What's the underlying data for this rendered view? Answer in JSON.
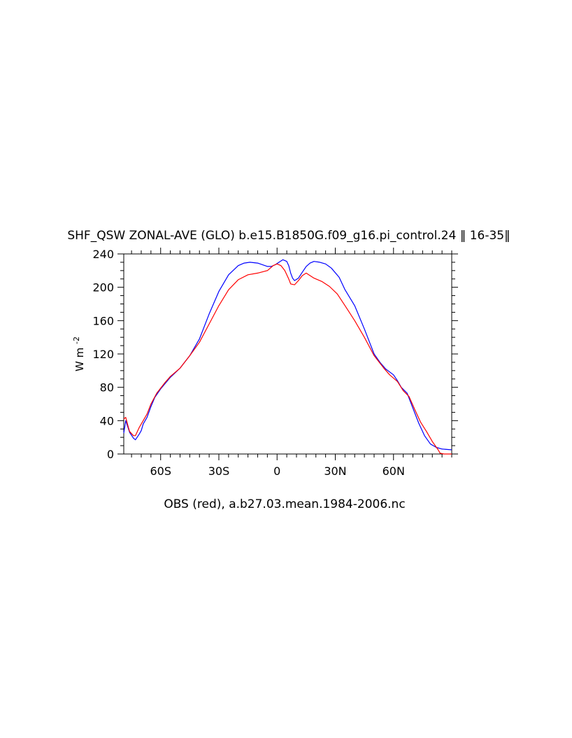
{
  "chart_data": {
    "type": "line",
    "title": "SHF_QSW ZONAL-AVE (GLO) b.e15.B1850G.f09_g16.pi_control.24 ‖ 16-35‖",
    "xlabel": "OBS (red), a.b27.03.mean.1984-2006.nc",
    "ylabel": "W m",
    "ylabel_exponent": "-2",
    "xlim": [
      -79,
      90
    ],
    "ylim": [
      0,
      240
    ],
    "x_ticks": [
      {
        "value": -60,
        "label": "60S"
      },
      {
        "value": -30,
        "label": "30S"
      },
      {
        "value": 0,
        "label": "0"
      },
      {
        "value": 30,
        "label": "30N"
      },
      {
        "value": 60,
        "label": "60N"
      }
    ],
    "y_ticks": [
      {
        "value": 0,
        "label": "0"
      },
      {
        "value": 40,
        "label": "40"
      },
      {
        "value": 80,
        "label": "80"
      },
      {
        "value": 120,
        "label": "120"
      },
      {
        "value": 160,
        "label": "160"
      },
      {
        "value": 200,
        "label": "200"
      },
      {
        "value": 240,
        "label": "240"
      }
    ],
    "grid": false,
    "series": [
      {
        "color": "#0000ff",
        "points": [
          [
            -79,
            25
          ],
          [
            -78,
            40
          ],
          [
            -77,
            33
          ],
          [
            -76,
            26
          ],
          [
            -74,
            19
          ],
          [
            -73,
            17
          ],
          [
            -71,
            24
          ],
          [
            -70,
            28
          ],
          [
            -69,
            36
          ],
          [
            -67,
            44
          ],
          [
            -65,
            57
          ],
          [
            -63,
            68
          ],
          [
            -60,
            78
          ],
          [
            -55,
            92
          ],
          [
            -50,
            103
          ],
          [
            -45,
            118
          ],
          [
            -40,
            138
          ],
          [
            -35,
            168
          ],
          [
            -30,
            195
          ],
          [
            -25,
            215
          ],
          [
            -20,
            226
          ],
          [
            -17,
            229
          ],
          [
            -14,
            230
          ],
          [
            -10,
            229
          ],
          [
            -5,
            225
          ],
          [
            -3,
            225
          ],
          [
            -1,
            227
          ],
          [
            1,
            230
          ],
          [
            3,
            233
          ],
          [
            5,
            231
          ],
          [
            6,
            226
          ],
          [
            7,
            217
          ],
          [
            8,
            211
          ],
          [
            9,
            208
          ],
          [
            11,
            211
          ],
          [
            13,
            218
          ],
          [
            15,
            225
          ],
          [
            17,
            229
          ],
          [
            19,
            231
          ],
          [
            22,
            230
          ],
          [
            25,
            228
          ],
          [
            28,
            223
          ],
          [
            32,
            212
          ],
          [
            35,
            197
          ],
          [
            40,
            178
          ],
          [
            45,
            150
          ],
          [
            50,
            120
          ],
          [
            53,
            110
          ],
          [
            56,
            102
          ],
          [
            60,
            95
          ],
          [
            62,
            88
          ],
          [
            64,
            80
          ],
          [
            67,
            73
          ],
          [
            70,
            55
          ],
          [
            73,
            37
          ],
          [
            76,
            22
          ],
          [
            79,
            12
          ],
          [
            82,
            8
          ],
          [
            85,
            6
          ],
          [
            90,
            5
          ]
        ]
      },
      {
        "color": "#ff0000",
        "points": [
          [
            -79,
            42
          ],
          [
            -78,
            44
          ],
          [
            -77,
            35
          ],
          [
            -76,
            27
          ],
          [
            -74,
            22
          ],
          [
            -73,
            22
          ],
          [
            -71,
            32
          ],
          [
            -69,
            40
          ],
          [
            -67,
            48
          ],
          [
            -65,
            60
          ],
          [
            -62,
            73
          ],
          [
            -58,
            85
          ],
          [
            -55,
            93
          ],
          [
            -50,
            103
          ],
          [
            -45,
            118
          ],
          [
            -40,
            134
          ],
          [
            -35,
            156
          ],
          [
            -30,
            178
          ],
          [
            -25,
            197
          ],
          [
            -20,
            209
          ],
          [
            -15,
            215
          ],
          [
            -10,
            217
          ],
          [
            -5,
            220
          ],
          [
            -2,
            226
          ],
          [
            0,
            228
          ],
          [
            2,
            226
          ],
          [
            4,
            220
          ],
          [
            6,
            210
          ],
          [
            7,
            204
          ],
          [
            9,
            203
          ],
          [
            11,
            208
          ],
          [
            13,
            214
          ],
          [
            15,
            217
          ],
          [
            17,
            214
          ],
          [
            19,
            211
          ],
          [
            23,
            207
          ],
          [
            27,
            201
          ],
          [
            31,
            192
          ],
          [
            35,
            178
          ],
          [
            40,
            160
          ],
          [
            45,
            140
          ],
          [
            50,
            118
          ],
          [
            55,
            103
          ],
          [
            58,
            95
          ],
          [
            62,
            87
          ],
          [
            65,
            76
          ],
          [
            68,
            69
          ],
          [
            71,
            53
          ],
          [
            74,
            38
          ],
          [
            77,
            27
          ],
          [
            80,
            15
          ],
          [
            83,
            5
          ],
          [
            84,
            1
          ],
          [
            86,
            0
          ],
          [
            90,
            0
          ]
        ]
      }
    ]
  }
}
